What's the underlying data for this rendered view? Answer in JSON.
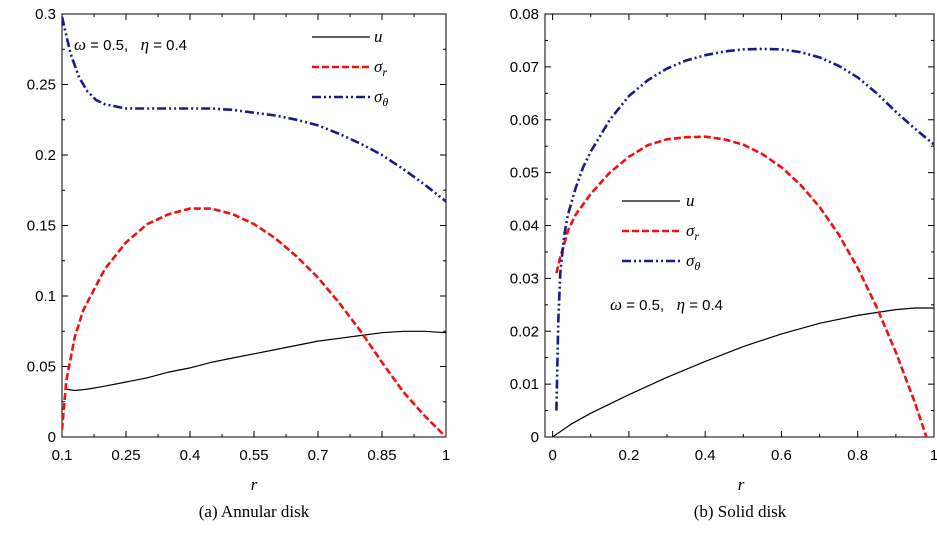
{
  "chart_data": [
    {
      "type": "line",
      "caption": "(a) Annular disk",
      "xlabel": "r",
      "ylabel": "",
      "xlim": [
        0.1,
        1.0
      ],
      "ylim": [
        0,
        0.3
      ],
      "xticks": [
        "0.1",
        "0.25",
        "0.4",
        "0.55",
        "0.7",
        "0.85",
        "1"
      ],
      "xtick_values": [
        0.1,
        0.25,
        0.4,
        0.55,
        0.7,
        0.85,
        1.0
      ],
      "yticks": [
        "0",
        "0.05",
        "0.1",
        "0.15",
        "0.2",
        "0.25",
        "0.3"
      ],
      "ytick_values": [
        0,
        0.05,
        0.1,
        0.15,
        0.2,
        0.25,
        0.3
      ],
      "annotation": {
        "omega_symbol": "ω",
        "omega_text": " = 0.5,",
        "eta_symbol": "η",
        "eta_text": " = 0.4"
      },
      "legend": {
        "placement": "top-right",
        "entries": [
          {
            "symbol": "u",
            "sub": ""
          },
          {
            "symbol": "σ",
            "sub": "r"
          },
          {
            "symbol": "σ",
            "sub": "θ"
          }
        ]
      },
      "series": [
        {
          "key": "u",
          "color": "#000000",
          "style": "solid",
          "x": [
            0.11,
            0.13,
            0.16,
            0.2,
            0.25,
            0.3,
            0.35,
            0.4,
            0.45,
            0.5,
            0.55,
            0.6,
            0.65,
            0.7,
            0.75,
            0.8,
            0.85,
            0.9,
            0.95,
            1.0
          ],
          "y": [
            0.034,
            0.033,
            0.034,
            0.036,
            0.039,
            0.042,
            0.046,
            0.049,
            0.053,
            0.056,
            0.059,
            0.062,
            0.065,
            0.068,
            0.07,
            0.072,
            0.074,
            0.075,
            0.075,
            0.074
          ]
        },
        {
          "key": "sigma_r",
          "color": "#ee1111",
          "style": "dashed",
          "x": [
            0.1,
            0.11,
            0.13,
            0.15,
            0.2,
            0.25,
            0.3,
            0.35,
            0.4,
            0.42,
            0.45,
            0.5,
            0.55,
            0.6,
            0.65,
            0.7,
            0.75,
            0.8,
            0.85,
            0.9,
            0.95,
            1.0
          ],
          "y": [
            0.005,
            0.04,
            0.071,
            0.09,
            0.119,
            0.138,
            0.151,
            0.158,
            0.162,
            0.162,
            0.162,
            0.158,
            0.151,
            0.141,
            0.128,
            0.113,
            0.095,
            0.075,
            0.053,
            0.032,
            0.015,
            0.0
          ]
        },
        {
          "key": "sigma_theta",
          "color": "#1a1a8c",
          "style": "dashdotdot",
          "x": [
            0.1,
            0.12,
            0.14,
            0.16,
            0.18,
            0.2,
            0.25,
            0.3,
            0.35,
            0.4,
            0.45,
            0.5,
            0.55,
            0.6,
            0.65,
            0.7,
            0.75,
            0.8,
            0.85,
            0.9,
            0.95,
            1.0
          ],
          "y": [
            0.298,
            0.272,
            0.255,
            0.245,
            0.239,
            0.236,
            0.233,
            0.233,
            0.233,
            0.233,
            0.233,
            0.232,
            0.23,
            0.228,
            0.225,
            0.221,
            0.215,
            0.208,
            0.2,
            0.19,
            0.179,
            0.167
          ]
        }
      ]
    },
    {
      "type": "line",
      "caption": "(b) Solid disk",
      "xlabel": "r",
      "ylabel": "",
      "xlim": [
        -0.02,
        1.0
      ],
      "ylim": [
        0,
        0.08
      ],
      "xticks": [
        "0",
        "0.2",
        "0.4",
        "0.6",
        "0.8",
        "1"
      ],
      "xtick_values": [
        0,
        0.2,
        0.4,
        0.6,
        0.8,
        1.0
      ],
      "yticks": [
        "0",
        "0.01",
        "0.02",
        "0.03",
        "0.04",
        "0.05",
        "0.06",
        "0.07",
        "0.08"
      ],
      "ytick_values": [
        0,
        0.01,
        0.02,
        0.03,
        0.04,
        0.05,
        0.06,
        0.07,
        0.08
      ],
      "annotation": {
        "omega_symbol": "ω",
        "omega_text": " = 0.5,",
        "eta_symbol": "η",
        "eta_text": " = 0.4"
      },
      "legend": {
        "placement": "center-left",
        "entries": [
          {
            "symbol": "u",
            "sub": ""
          },
          {
            "symbol": "σ",
            "sub": "r"
          },
          {
            "symbol": "σ",
            "sub": "θ"
          }
        ]
      },
      "series": [
        {
          "key": "u",
          "color": "#000000",
          "style": "solid",
          "x": [
            0.0,
            0.05,
            0.1,
            0.2,
            0.3,
            0.4,
            0.5,
            0.6,
            0.7,
            0.8,
            0.9,
            0.95,
            1.0
          ],
          "y": [
            0.0,
            0.0025,
            0.0045,
            0.008,
            0.0113,
            0.0143,
            0.0171,
            0.0195,
            0.0215,
            0.023,
            0.0241,
            0.0244,
            0.0244
          ]
        },
        {
          "key": "sigma_r",
          "color": "#ee1111",
          "style": "dashed",
          "x": [
            0.01,
            0.02,
            0.04,
            0.06,
            0.1,
            0.15,
            0.2,
            0.25,
            0.3,
            0.35,
            0.4,
            0.45,
            0.5,
            0.55,
            0.6,
            0.65,
            0.7,
            0.75,
            0.8,
            0.85,
            0.9,
            0.95,
            0.98
          ],
          "y": [
            0.031,
            0.034,
            0.039,
            0.042,
            0.046,
            0.05,
            0.053,
            0.0552,
            0.0563,
            0.0567,
            0.0568,
            0.0563,
            0.0553,
            0.0535,
            0.051,
            0.0477,
            0.0435,
            0.0383,
            0.032,
            0.0245,
            0.016,
            0.0065,
            0.0
          ]
        },
        {
          "key": "sigma_theta",
          "color": "#1a1a8c",
          "style": "dashdotdot",
          "x": [
            0.01,
            0.015,
            0.02,
            0.03,
            0.04,
            0.06,
            0.08,
            0.1,
            0.15,
            0.2,
            0.25,
            0.3,
            0.35,
            0.4,
            0.45,
            0.5,
            0.55,
            0.6,
            0.65,
            0.7,
            0.75,
            0.8,
            0.85,
            0.9,
            0.95,
            1.0
          ],
          "y": [
            0.005,
            0.022,
            0.031,
            0.038,
            0.042,
            0.047,
            0.051,
            0.054,
            0.06,
            0.0645,
            0.0675,
            0.0697,
            0.0712,
            0.0722,
            0.0729,
            0.0733,
            0.0734,
            0.0733,
            0.0728,
            0.0718,
            0.0702,
            0.068,
            0.065,
            0.0615,
            0.0583,
            0.0553
          ]
        }
      ]
    }
  ]
}
